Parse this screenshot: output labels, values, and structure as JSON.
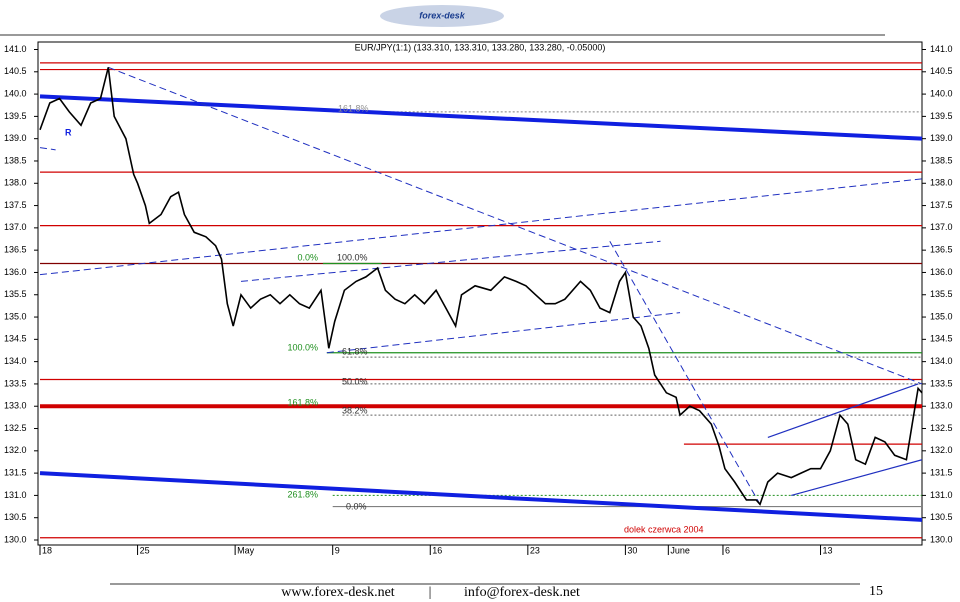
{
  "header": {
    "logo": "forex-desk"
  },
  "chart_data": {
    "type": "line",
    "title": "EUR/JPY(1:1) (133.310, 133.310, 133.280, 133.280, -0.05000)",
    "color": "#000000",
    "x": [
      0,
      0.5,
      1.0,
      1.5,
      2.1,
      2.6,
      3.1,
      3.5,
      3.8,
      4.4,
      4.8,
      5.0,
      5.4,
      5.6,
      6.2,
      6.7,
      7.1,
      7.4,
      7.9,
      8.5,
      9.0,
      9.3,
      9.6,
      9.9,
      10.3,
      10.8,
      11.3,
      11.8,
      12.3,
      12.8,
      13.3,
      13.8,
      14.4,
      14.8,
      15.1,
      15.6,
      16.2,
      16.7,
      17.3,
      17.7,
      18.2,
      18.7,
      19.2,
      19.7,
      20.3,
      20.8,
      21.3,
      21.6,
      22.3,
      23.1,
      23.8,
      24.4,
      24.9,
      25.4,
      25.9,
      26.4,
      26.9,
      27.7,
      28.2,
      28.7,
      29.2,
      29.7,
      30.0,
      30.4,
      30.8,
      31.2,
      31.5,
      32.1,
      32.6,
      32.8,
      33.3,
      33.8,
      34.4,
      34.8,
      35.1,
      35.6,
      36.2,
      36.7,
      36.9,
      37.3,
      37.8,
      38.5,
      39.0,
      39.5,
      40.0,
      40.5,
      41.0,
      41.4,
      41.8,
      42.3,
      42.8,
      43.3,
      43.8,
      44.4,
      44.7,
      45.0,
      45.2
    ],
    "values": [
      139.2,
      139.8,
      139.9,
      139.6,
      139.3,
      139.8,
      139.9,
      140.6,
      139.5,
      139.0,
      138.2,
      138.0,
      137.5,
      137.1,
      137.3,
      137.7,
      137.8,
      137.3,
      136.9,
      136.8,
      136.6,
      136.3,
      135.3,
      134.8,
      135.5,
      135.2,
      135.4,
      135.5,
      135.3,
      135.5,
      135.3,
      135.2,
      135.6,
      134.3,
      134.9,
      135.6,
      135.8,
      135.9,
      136.1,
      135.6,
      135.4,
      135.3,
      135.5,
      135.3,
      135.6,
      135.2,
      134.8,
      135.5,
      135.7,
      135.6,
      135.9,
      135.8,
      135.7,
      135.5,
      135.3,
      135.3,
      135.4,
      135.8,
      135.6,
      135.2,
      135.1,
      135.8,
      136.0,
      135.0,
      134.8,
      134.3,
      133.7,
      133.3,
      133.2,
      132.8,
      133.0,
      132.9,
      132.6,
      132.1,
      131.6,
      131.3,
      130.9,
      130.9,
      130.8,
      131.3,
      131.5,
      131.4,
      131.5,
      131.6,
      131.6,
      132.0,
      132.8,
      132.6,
      131.8,
      131.7,
      132.3,
      132.2,
      131.9,
      131.8,
      132.6,
      133.4,
      133.3
    ],
    "xlim": [
      0,
      45.2
    ],
    "xticks": [
      {
        "value": 0,
        "label": "18"
      },
      {
        "value": 5,
        "label": "25"
      },
      {
        "value": 10,
        "label": "May"
      },
      {
        "value": 15,
        "label": "9"
      },
      {
        "value": 20,
        "label": "16"
      },
      {
        "value": 25,
        "label": "23"
      },
      {
        "value": 30,
        "label": "30"
      },
      {
        "value": 32.2,
        "label": "June"
      },
      {
        "value": 35,
        "label": "6"
      },
      {
        "value": 40,
        "label": "13"
      }
    ],
    "ylim": [
      130,
      141.15
    ],
    "yticks": [
      {
        "value": 130,
        "label": "130.0"
      },
      {
        "value": 130.5,
        "label": "130.5"
      },
      {
        "value": 131,
        "label": "131.0"
      },
      {
        "value": 131.5,
        "label": "131.5"
      },
      {
        "value": 132,
        "label": "132.0"
      },
      {
        "value": 132.5,
        "label": "132.5"
      },
      {
        "value": 133,
        "label": "133.0"
      },
      {
        "value": 133.5,
        "label": "133.5"
      },
      {
        "value": 134,
        "label": "134.0"
      },
      {
        "value": 134.5,
        "label": "134.5"
      },
      {
        "value": 135,
        "label": "135.0"
      },
      {
        "value": 135.5,
        "label": "135.5"
      },
      {
        "value": 136,
        "label": "136.0"
      },
      {
        "value": 136.5,
        "label": "136.5"
      },
      {
        "value": 137,
        "label": "137.0"
      },
      {
        "value": 137.5,
        "label": "137.5"
      },
      {
        "value": 138,
        "label": "138.0"
      },
      {
        "value": 138.5,
        "label": "138.5"
      },
      {
        "value": 139,
        "label": "139.0"
      },
      {
        "value": 139.5,
        "label": "139.5"
      },
      {
        "value": 140,
        "label": "140.0"
      },
      {
        "value": 140.5,
        "label": "140.5"
      },
      {
        "value": 141,
        "label": "141.0"
      }
    ],
    "levels": [
      {
        "value": 140.7,
        "x": [
          0,
          45.2
        ],
        "color": "#d00000",
        "style": "solid"
      },
      {
        "value": 140.55,
        "x": [
          0,
          45.2
        ],
        "color": "#d00000",
        "style": "solid"
      },
      {
        "value": 138.25,
        "x": [
          0,
          45.2
        ],
        "color": "#d00000",
        "style": "solid"
      },
      {
        "value": 137.05,
        "x": [
          0,
          45.2
        ],
        "color": "#d00000",
        "style": "solid"
      },
      {
        "value": 136.2,
        "x": [
          0,
          45.2
        ],
        "color": "#800000",
        "style": "solid"
      },
      {
        "value": 133.6,
        "x": [
          0,
          45.2
        ],
        "color": "#d00000",
        "style": "solid"
      },
      {
        "value": 133.0,
        "x": [
          0,
          45.2
        ],
        "color": "#d00000",
        "style": "thick"
      },
      {
        "value": 132.15,
        "x": [
          33.0,
          45.2
        ],
        "color": "#d00000",
        "style": "solid"
      },
      {
        "value": 130.05,
        "x": [
          0,
          45.2
        ],
        "color": "#d00000",
        "style": "solid"
      },
      {
        "value": 134.2,
        "x": [
          14.7,
          45.2
        ],
        "color": "#209020",
        "style": "solid"
      },
      {
        "value": 136.2,
        "x": [
          14.5,
          17.5
        ],
        "color": "#209020",
        "style": "solid"
      },
      {
        "value": 139.6,
        "x": [
          15,
          45.2
        ],
        "color": "#808080",
        "style": "dotted"
      },
      {
        "value": 134.1,
        "x": [
          15.5,
          45.2
        ],
        "color": "#606060",
        "style": "dotted"
      },
      {
        "value": 133.5,
        "x": [
          15.5,
          45.2
        ],
        "color": "#606060",
        "style": "dotted"
      },
      {
        "value": 132.8,
        "x": [
          15.5,
          45.2
        ],
        "color": "#606060",
        "style": "dotted"
      },
      {
        "value": 131.0,
        "x": [
          15,
          45.2
        ],
        "color": "#209020",
        "style": "dotted"
      },
      {
        "value": 130.75,
        "x": [
          15,
          45.2
        ],
        "color": "#808080",
        "style": "solid"
      }
    ],
    "trendlines": [
      {
        "x": [
          0,
          45.2
        ],
        "values": [
          139.95,
          139.0
        ],
        "color": "#1020e0",
        "style": "thick"
      },
      {
        "x": [
          0,
          45.2
        ],
        "values": [
          131.5,
          130.45
        ],
        "color": "#1020e0",
        "style": "thick"
      },
      {
        "x": [
          0,
          45.2
        ],
        "values": [
          135.95,
          138.1
        ],
        "color": "#2030c0",
        "style": "dashed"
      },
      {
        "x": [
          3.5,
          45.2
        ],
        "values": [
          140.6,
          133.5
        ],
        "color": "#2030c0",
        "style": "dashed"
      },
      {
        "x": [
          10.3,
          31.8
        ],
        "values": [
          135.8,
          136.7
        ],
        "color": "#2030c0",
        "style": "dashed"
      },
      {
        "x": [
          14.7,
          32.8
        ],
        "values": [
          134.2,
          135.1
        ],
        "color": "#2030c0",
        "style": "dashed"
      },
      {
        "x": [
          29.2,
          36.9
        ],
        "values": [
          136.7,
          130.8
        ],
        "color": "#2030c0",
        "style": "dashed"
      },
      {
        "x": [
          37.3,
          45.0
        ],
        "values": [
          132.3,
          133.5
        ],
        "color": "#2030c0",
        "style": "solid"
      },
      {
        "x": [
          38.5,
          45.2
        ],
        "values": [
          131.0,
          131.8
        ],
        "color": "#2030c0",
        "style": "solid"
      },
      {
        "x": [
          0,
          0.8
        ],
        "values": [
          138.8,
          138.75
        ],
        "color": "#2030c0",
        "style": "dashed"
      }
    ],
    "annotations": [
      {
        "text": "0.0%",
        "color": "#209020"
      },
      {
        "text": "100.0%",
        "color": "#303030"
      },
      {
        "text": "100.0%",
        "color": "#209020"
      },
      {
        "text": "61.8%",
        "color": "#303030"
      },
      {
        "text": "50.0%",
        "color": "#303030"
      },
      {
        "text": "161.8%",
        "color": "#209020"
      },
      {
        "text": "38.2%",
        "color": "#303030"
      },
      {
        "text": "261.8%",
        "color": "#209020"
      },
      {
        "text": "0.0%",
        "color": "#303030"
      },
      {
        "text": "161.8%",
        "color": "#909090"
      },
      {
        "text": "dolek czerwca 2004",
        "color": "#d00000"
      },
      {
        "text": "R",
        "color": "#1020e0"
      }
    ]
  },
  "footer": {
    "website": "www.forex-desk.net",
    "separator": "|",
    "email": "info@forex-desk.net",
    "page": "15"
  }
}
